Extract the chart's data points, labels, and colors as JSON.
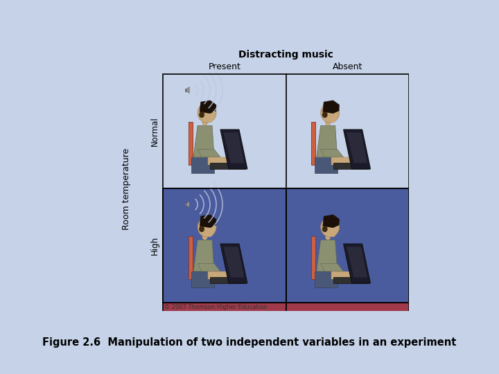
{
  "background_color": "#c5d2e8",
  "panel_bg": "#ffffff",
  "title_text": "Distracting music",
  "col_labels": [
    "Present",
    "Absent"
  ],
  "row_labels": [
    "Normal",
    "High"
  ],
  "ylabel_text": "Room temperature",
  "copyright_text": "© 2007 Thomson Higher Education",
  "caption_text": "Figure 2.6  Manipulation of two independent variables in an experiment",
  "blue_bg": "#4a5c9d",
  "red_bg": "#a03a4a",
  "skin_color": "#c8a87a",
  "hair_color": "#1a1008",
  "shirt_color": "#8a9070",
  "chair_color": "#cc6040",
  "laptop_dark": "#252525",
  "wave_color": "#c0c8e0",
  "title_fontsize": 10,
  "col_label_fontsize": 9,
  "row_label_fontsize": 8.5,
  "ylabel_fontsize": 9,
  "caption_fontsize": 10.5,
  "copyright_fontsize": 6
}
